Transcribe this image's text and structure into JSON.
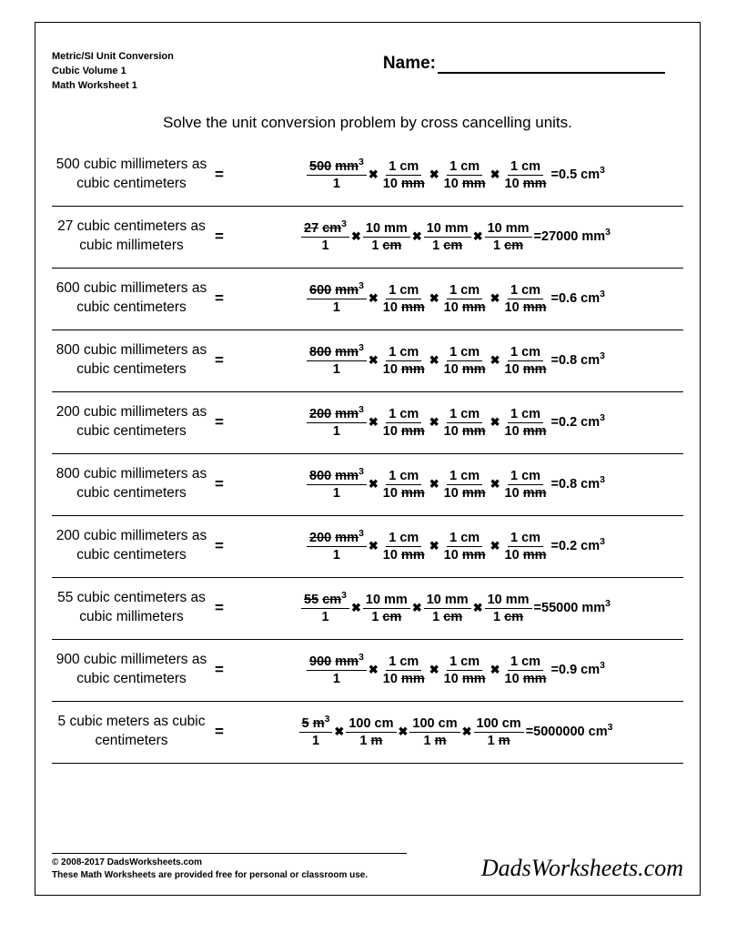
{
  "meta": {
    "line1": "Metric/SI Unit Conversion",
    "line2": "Cubic Volume 1",
    "line3": "Math Worksheet 1"
  },
  "name_label": "Name:",
  "instructions": "Solve the unit conversion problem by cross cancelling units.",
  "problems": [
    {
      "prompt": "500 cubic millimeters as cubic centimeters",
      "start_num": "500",
      "start_unit": "mm",
      "start_exp": "3",
      "conv_num": "1 cm",
      "conv_den_val": "10",
      "conv_den_unit": "mm",
      "result": "=0.5 cm",
      "result_exp": "3"
    },
    {
      "prompt": "27 cubic centimeters as cubic millimeters",
      "start_num": "27",
      "start_unit": "cm",
      "start_exp": "3",
      "conv_num": "10 mm",
      "conv_den_val": "1",
      "conv_den_unit": "cm",
      "result": "=27000 mm",
      "result_exp": "3"
    },
    {
      "prompt": "600 cubic millimeters as cubic centimeters",
      "start_num": "600",
      "start_unit": "mm",
      "start_exp": "3",
      "conv_num": "1 cm",
      "conv_den_val": "10",
      "conv_den_unit": "mm",
      "result": "=0.6 cm",
      "result_exp": "3"
    },
    {
      "prompt": "800 cubic millimeters as cubic centimeters",
      "start_num": "800",
      "start_unit": "mm",
      "start_exp": "3",
      "conv_num": "1 cm",
      "conv_den_val": "10",
      "conv_den_unit": "mm",
      "result": "=0.8 cm",
      "result_exp": "3"
    },
    {
      "prompt": "200 cubic millimeters as cubic centimeters",
      "start_num": "200",
      "start_unit": "mm",
      "start_exp": "3",
      "conv_num": "1 cm",
      "conv_den_val": "10",
      "conv_den_unit": "mm",
      "result": "=0.2 cm",
      "result_exp": "3"
    },
    {
      "prompt": "800 cubic millimeters as cubic centimeters",
      "start_num": "800",
      "start_unit": "mm",
      "start_exp": "3",
      "conv_num": "1 cm",
      "conv_den_val": "10",
      "conv_den_unit": "mm",
      "result": "=0.8 cm",
      "result_exp": "3"
    },
    {
      "prompt": "200 cubic millimeters as cubic centimeters",
      "start_num": "200",
      "start_unit": "mm",
      "start_exp": "3",
      "conv_num": "1 cm",
      "conv_den_val": "10",
      "conv_den_unit": "mm",
      "result": "=0.2 cm",
      "result_exp": "3"
    },
    {
      "prompt": "55 cubic centimeters as cubic millimeters",
      "start_num": "55",
      "start_unit": "cm",
      "start_exp": "3",
      "conv_num": "10 mm",
      "conv_den_val": "1",
      "conv_den_unit": "cm",
      "result": "=55000 mm",
      "result_exp": "3"
    },
    {
      "prompt": "900 cubic millimeters as cubic centimeters",
      "start_num": "900",
      "start_unit": "mm",
      "start_exp": "3",
      "conv_num": "1 cm",
      "conv_den_val": "10",
      "conv_den_unit": "mm",
      "result": "=0.9 cm",
      "result_exp": "3"
    },
    {
      "prompt": "5 cubic meters as cubic centimeters",
      "start_num": "5",
      "start_unit": "m",
      "start_exp": "3",
      "conv_num": "100 cm",
      "conv_den_val": "1",
      "conv_den_unit": "m",
      "result": "=5000000 cm",
      "result_exp": "3"
    }
  ],
  "footer": {
    "copyright": "© 2008-2017 DadsWorksheets.com",
    "note": "These Math Worksheets are provided free for personal or classroom use.",
    "brand": "DadsWorksheets.com"
  },
  "colors": {
    "text": "#000000",
    "background": "#ffffff",
    "border": "#000000"
  }
}
